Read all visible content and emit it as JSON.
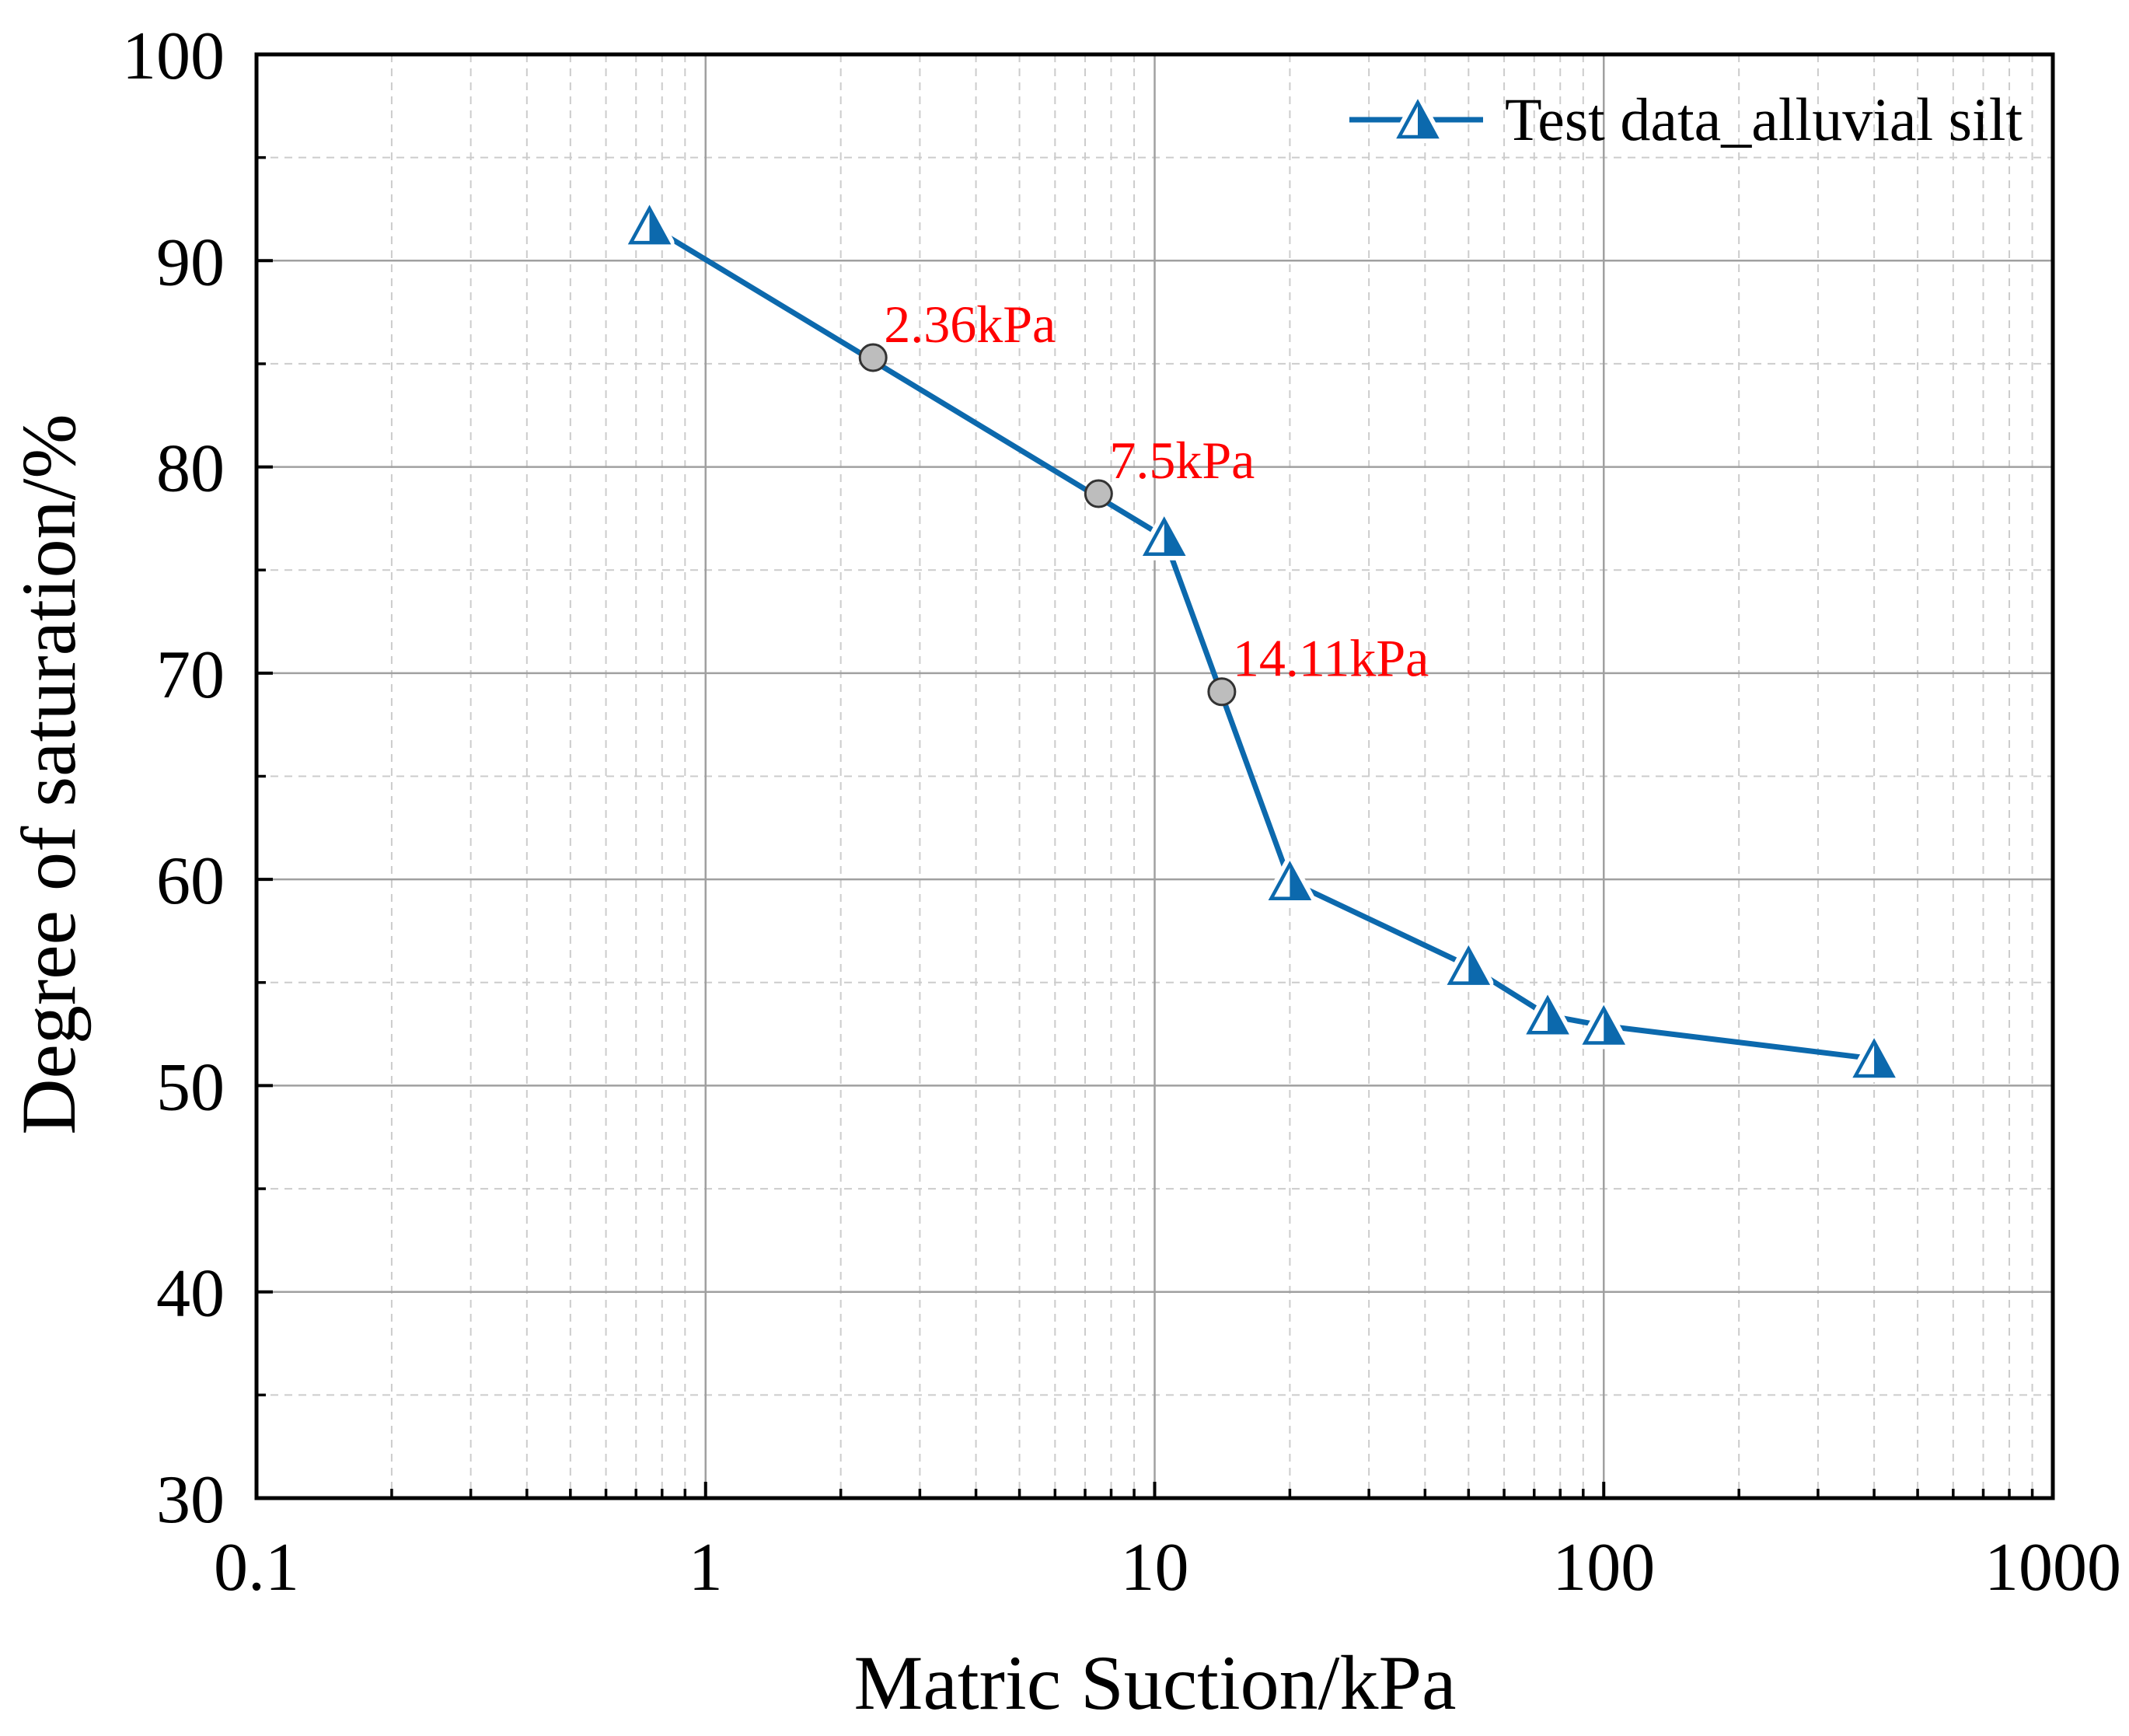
{
  "chart_data": {
    "type": "line",
    "title": "",
    "xlabel": "Matric Suction/kPa",
    "ylabel": "Degree of saturation/%",
    "xscale": "log",
    "xlim": [
      0.1,
      1000
    ],
    "ylim": [
      30,
      100
    ],
    "xticks": [
      0.1,
      1,
      10,
      100,
      1000
    ],
    "xtick_labels": [
      "0.1",
      "1",
      "10",
      "100",
      "1000"
    ],
    "yticks": [
      30,
      40,
      50,
      60,
      70,
      80,
      90,
      100
    ],
    "ytick_labels": [
      "30",
      "40",
      "50",
      "60",
      "70",
      "80",
      "90",
      "100"
    ],
    "grid": true,
    "legend": {
      "position": "top-right"
    },
    "series": [
      {
        "name": "Test data_alluvial silt",
        "marker": "half-filled-triangle",
        "x": [
          0.75,
          10.5,
          20,
          50,
          75,
          100,
          400
        ],
        "y": [
          91.7,
          76.6,
          59.9,
          55.8,
          53.4,
          52.9,
          51.3
        ]
      }
    ],
    "annotations": [
      {
        "x": 2.36,
        "y": 85.3,
        "text": "2.36kPa"
      },
      {
        "x": 7.5,
        "y": 78.7,
        "text": "7.5kPa"
      },
      {
        "x": 14.11,
        "y": 69.1,
        "text": "14.11kPa"
      }
    ]
  },
  "colors": {
    "series": "#0c69ad",
    "annotation_text": "#ff0000",
    "annotation_marker": "#bdbdbd",
    "grid_major": "#a0a0a0",
    "grid_minor": "#cccccc",
    "axis": "#000000"
  }
}
